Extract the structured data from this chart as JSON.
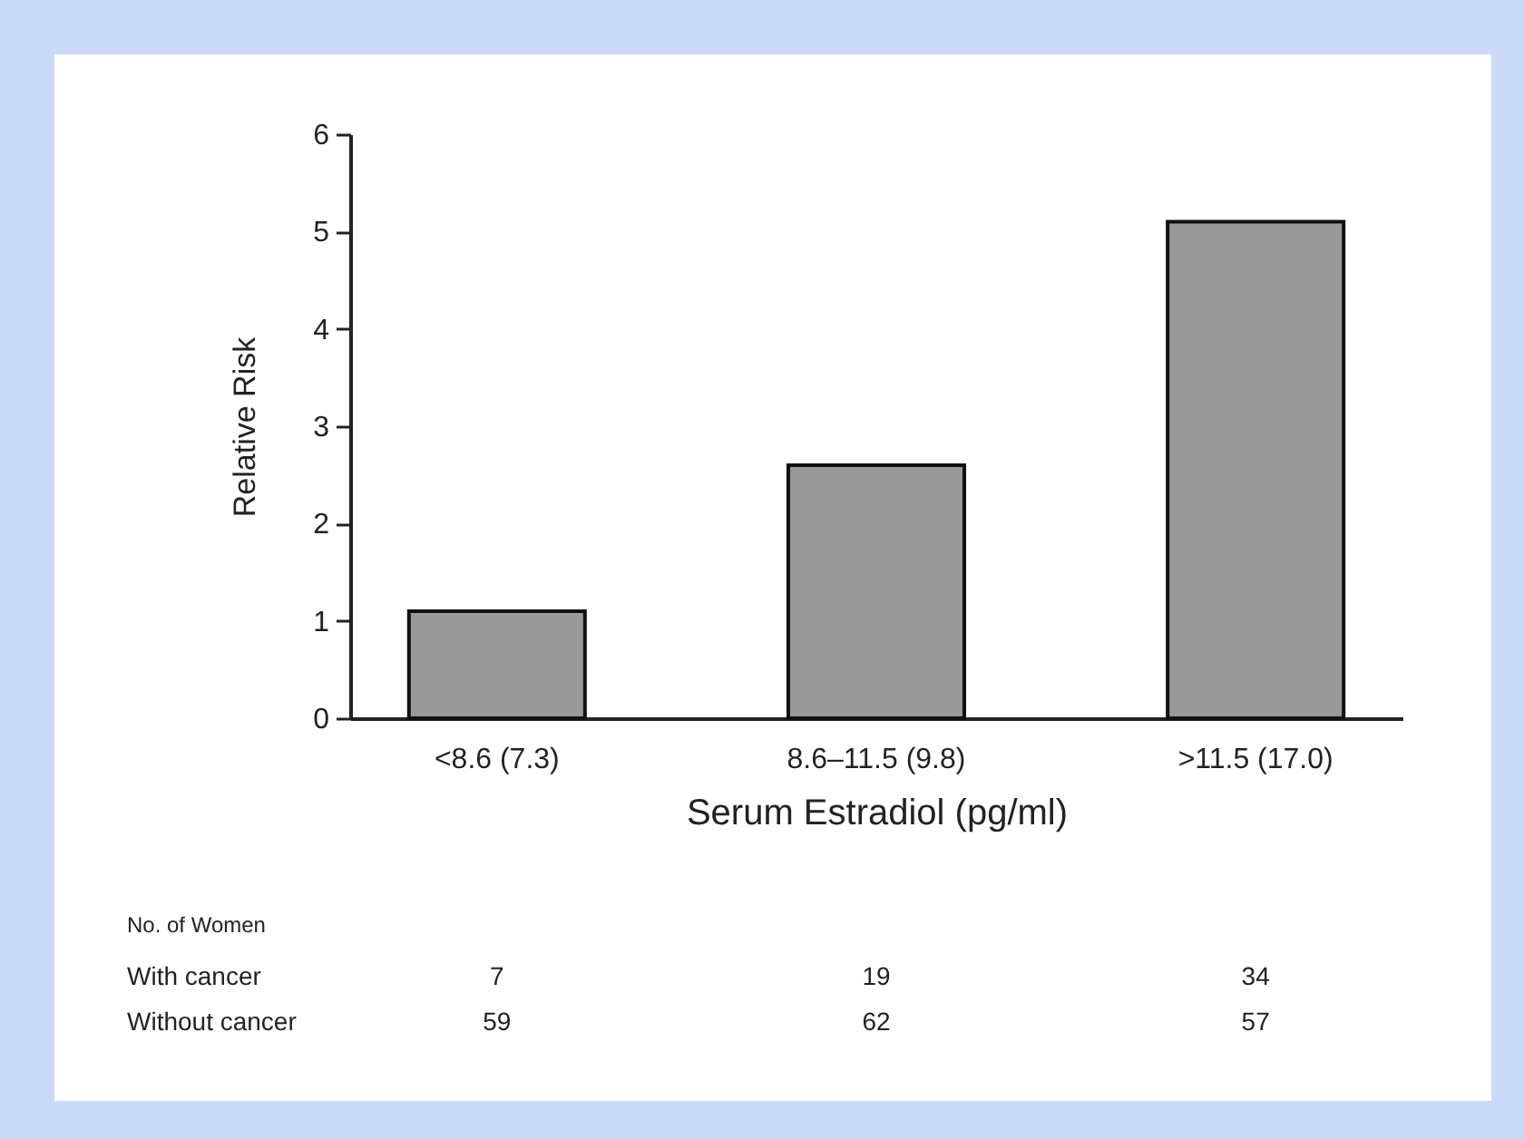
{
  "chart_data": {
    "type": "bar",
    "categories": [
      "<8.6 (7.3)",
      "8.6–11.5 (9.8)",
      ">11.5 (17.0)"
    ],
    "values": [
      1.1,
      2.6,
      5.1
    ],
    "color": "#999999",
    "xlabel": "Serum Estradiol (pg/ml)",
    "ylabel": "Relative Risk",
    "ylim": [
      0,
      6
    ],
    "yticks": [
      0,
      1,
      2,
      3,
      4,
      5,
      6
    ],
    "grid": false,
    "annotations": [
      "No. of Women",
      "With cancer",
      "7",
      "19",
      "34",
      "Without cancer",
      "59",
      "62",
      "57"
    ]
  }
}
